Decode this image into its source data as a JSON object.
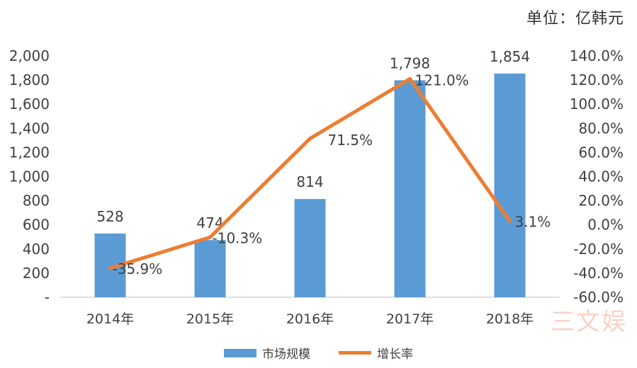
{
  "unit_label": "单位：亿韩元",
  "watermark_text": "三文娱",
  "colors": {
    "bar": "#5b9bd5",
    "line": "#ed7d31",
    "axis": "#bfbfbf",
    "text": "#404040"
  },
  "chart_data": {
    "type": "bar",
    "categories": [
      "2014年",
      "2015年",
      "2016年",
      "2017年",
      "2018年"
    ],
    "series": [
      {
        "name": "市场规模",
        "type": "bar",
        "axis": "left",
        "values": [
          528,
          474,
          814,
          1798,
          1854
        ],
        "labels": [
          "528",
          "474",
          "814",
          "1,798",
          "1,854"
        ]
      },
      {
        "name": "增长率",
        "type": "line",
        "axis": "right",
        "values": [
          -35.9,
          -10.3,
          71.5,
          121.0,
          3.1
        ],
        "labels": [
          "-35.9%",
          "-10.3%",
          "71.5%",
          "121.0%",
          "3.1%"
        ]
      }
    ],
    "y_left": {
      "ylim": [
        0,
        2000
      ],
      "ticks": [
        0,
        200,
        400,
        600,
        800,
        1000,
        1200,
        1400,
        1600,
        1800,
        2000
      ],
      "tick_labels": [
        "-",
        "200",
        "400",
        "600",
        "800",
        "1,000",
        "1,200",
        "1,400",
        "1,600",
        "1,800",
        "2,000"
      ]
    },
    "y_right": {
      "ylim": [
        -60,
        140
      ],
      "ticks": [
        -60,
        -40,
        -20,
        0,
        20,
        40,
        60,
        80,
        100,
        120,
        140
      ],
      "tick_labels": [
        "-60.0%",
        "-40.0%",
        "-20.0%",
        "0.0%",
        "20.0%",
        "40.0%",
        "60.0%",
        "80.0%",
        "100.0%",
        "120.0%",
        "140.0%"
      ]
    },
    "grid": false,
    "legend_position": "bottom"
  }
}
